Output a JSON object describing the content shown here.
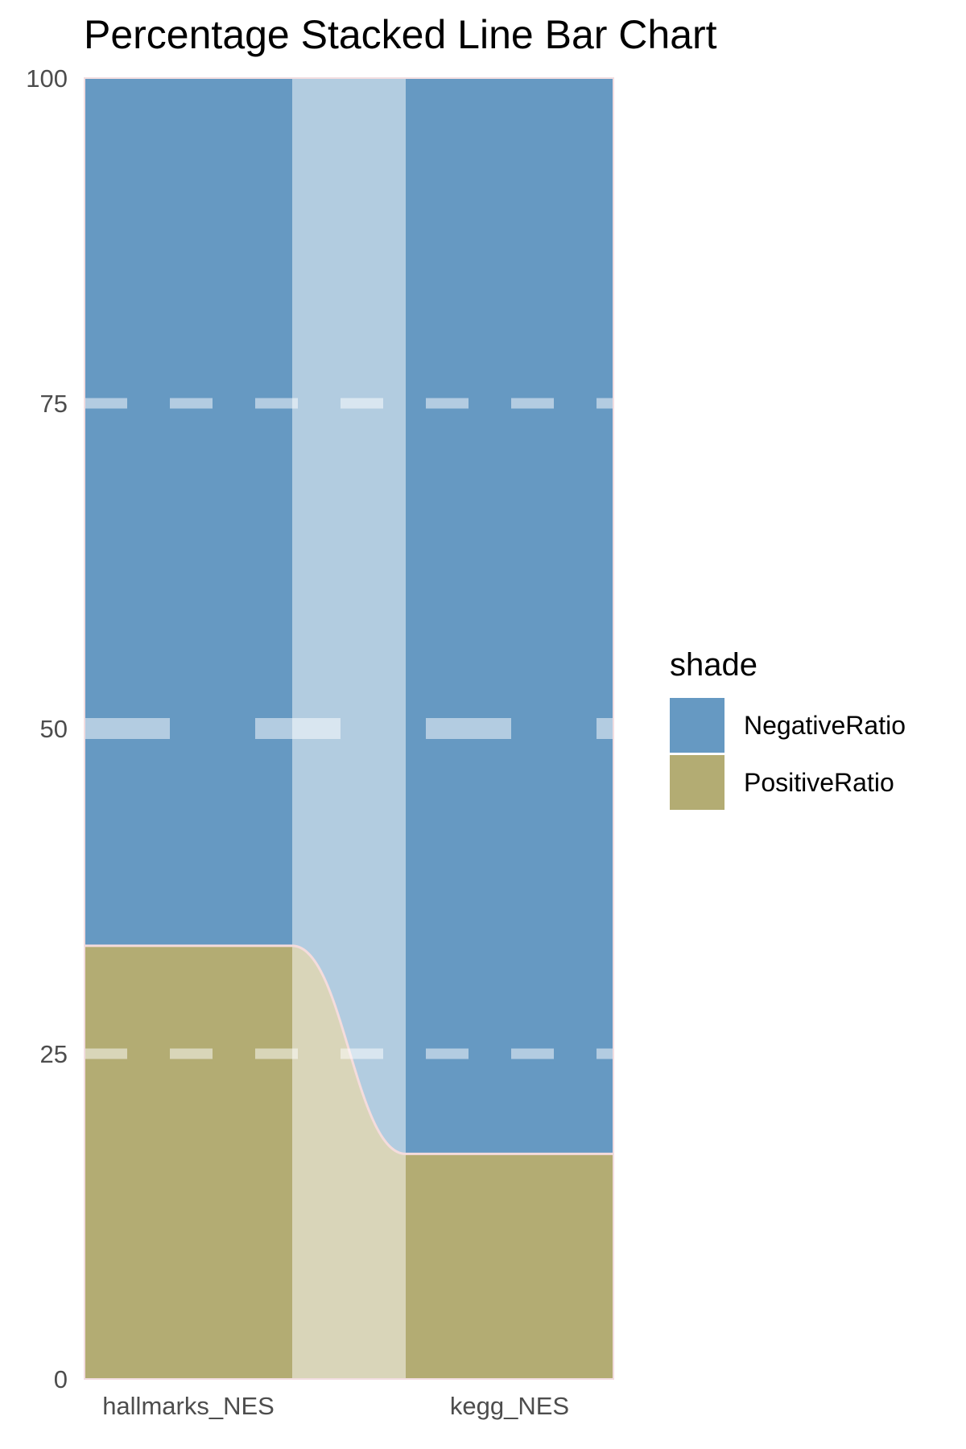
{
  "chart_data": {
    "type": "bar",
    "stacked": "percent",
    "title": "Percentage Stacked Line Bar Chart",
    "xlabel": "",
    "ylabel": "",
    "categories": [
      "hallmarks_NES",
      "kegg_NES"
    ],
    "series": [
      {
        "name": "NegativeRatio",
        "values": [
          66.7,
          82.7
        ],
        "color": "#6699C2"
      },
      {
        "name": "PositiveRatio",
        "values": [
          33.3,
          17.3
        ],
        "color": "#B3AC73"
      }
    ],
    "ylim": [
      0,
      100
    ],
    "yticks": [
      0,
      25,
      50,
      75,
      100
    ],
    "grid": "dashed-white",
    "legend": {
      "title": "shade",
      "position": "right"
    },
    "connector_color": "#F4DCDC"
  }
}
